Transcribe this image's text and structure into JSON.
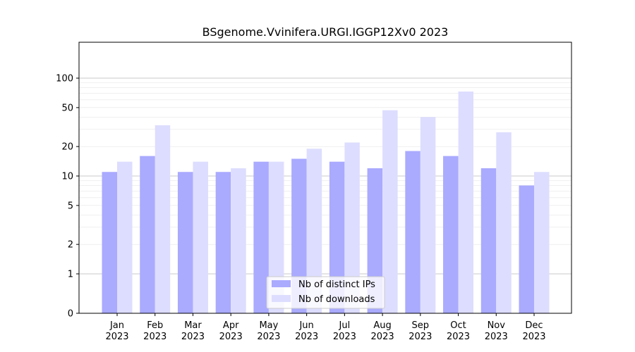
{
  "chart_data": {
    "type": "bar",
    "title": "BSgenome.Vvinifera.URGI.IGGP12Xv0 2023",
    "xlabel": "",
    "ylabel": "",
    "y_scale": "symlog",
    "ylim": [
      0,
      120
    ],
    "y_ticks": [
      0,
      1,
      2,
      5,
      10,
      20,
      50,
      100
    ],
    "categories": [
      "Jan",
      "Feb",
      "Mar",
      "Apr",
      "May",
      "Jun",
      "Jul",
      "Aug",
      "Sep",
      "Oct",
      "Nov",
      "Dec"
    ],
    "category_year": "2023",
    "series": [
      {
        "name": "Nb of distinct IPs",
        "color": "#aaaaff",
        "values": [
          11,
          16,
          11,
          11,
          14,
          15,
          14,
          12,
          18,
          16,
          12,
          8
        ]
      },
      {
        "name": "Nb of downloads",
        "color": "#ddddff",
        "values": [
          14,
          33,
          14,
          12,
          14,
          19,
          22,
          47,
          40,
          73,
          28,
          11
        ]
      }
    ],
    "grid": true,
    "legend_position": "lower center"
  }
}
